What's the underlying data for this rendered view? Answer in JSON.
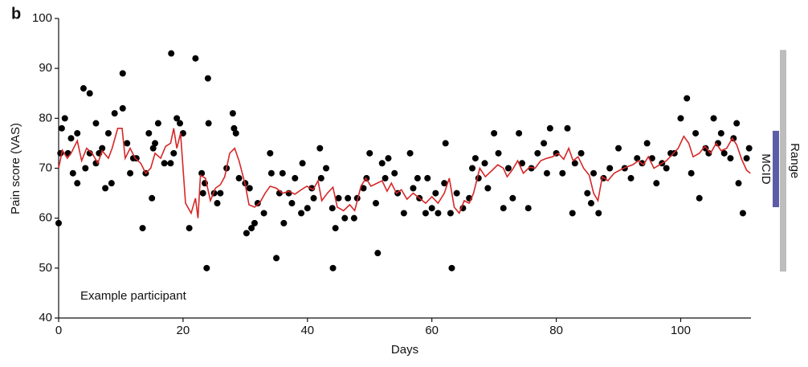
{
  "chart_data": {
    "type": "scatter",
    "panel_label": "b",
    "annotation": "Example participant",
    "x_label": "Days",
    "y_label": "Pain score (VAS)",
    "xlim": [
      0,
      111.3
    ],
    "ylim": [
      40,
      100
    ],
    "xticks": [
      0,
      20,
      40,
      60,
      80,
      100
    ],
    "yticks": [
      40,
      50,
      60,
      70,
      80,
      90,
      100
    ],
    "points": {
      "color": "#000000",
      "x": [
        0,
        0.3,
        0.5,
        1,
        1.5,
        2,
        2.3,
        3,
        3,
        4,
        4.3,
        5,
        5,
        6,
        6,
        6.5,
        7,
        7.5,
        8,
        8.5,
        9,
        10.3,
        10.3,
        11,
        11.5,
        12,
        12.5,
        13.5,
        14,
        14.5,
        15,
        15.2,
        15.5,
        16,
        17,
        18,
        18.1,
        18.5,
        19,
        19.5,
        20,
        21,
        22,
        23,
        23.2,
        23.5,
        23.8,
        24,
        24.1,
        25,
        25.5,
        26,
        27,
        28,
        28.2,
        28.5,
        29,
        30,
        30.2,
        30.7,
        31,
        31.5,
        32,
        33,
        34,
        34.2,
        35,
        35.5,
        36,
        36.2,
        37,
        37.5,
        38,
        39,
        39.2,
        40,
        40.7,
        41,
        42,
        42.2,
        43,
        44,
        44.1,
        44.5,
        45,
        46,
        46.5,
        47.5,
        48,
        49,
        49.5,
        50,
        51,
        51.3,
        52,
        52.5,
        53,
        54,
        54.5,
        55.5,
        56.5,
        57,
        57.7,
        58,
        59,
        59.3,
        60,
        60.6,
        61,
        62,
        62.2,
        63,
        63.2,
        64,
        65,
        66,
        66.5,
        67,
        67.5,
        68.5,
        69,
        70,
        70.7,
        71.5,
        72.3,
        73,
        74,
        74.5,
        75.5,
        76,
        77,
        78,
        78.5,
        79,
        80,
        81,
        81.8,
        82.6,
        83,
        84,
        85,
        85.6,
        86,
        86.8,
        87.6,
        88.6,
        90,
        91,
        92,
        93,
        93.8,
        94.6,
        95.4,
        96.1,
        97,
        97.7,
        98.4,
        99,
        100,
        101,
        101.7,
        102.4,
        103,
        104,
        104.5,
        105.3,
        106,
        106.5,
        107,
        108,
        108.5,
        109,
        109.3,
        110,
        110.6,
        111
      ],
      "y": [
        59,
        73,
        78,
        80,
        73,
        76,
        69,
        67,
        77,
        86,
        70,
        85,
        73,
        79,
        71,
        73,
        74,
        66,
        77,
        67,
        81,
        89,
        82,
        75,
        69,
        72,
        72,
        58,
        69,
        77,
        64,
        74,
        75,
        79,
        71,
        71,
        93,
        73,
        80,
        79,
        77,
        58,
        92,
        69,
        65,
        67,
        50,
        88,
        79,
        65,
        63,
        65,
        70,
        81,
        78,
        77,
        68,
        67,
        57,
        66,
        58,
        59,
        63,
        61,
        73,
        69,
        52,
        65,
        69,
        59,
        65,
        63,
        68,
        61,
        71,
        62,
        66,
        64,
        74,
        68,
        70,
        62,
        50,
        58,
        64,
        60,
        64,
        60,
        64,
        66,
        68,
        73,
        63,
        53,
        71,
        68,
        72,
        69,
        65,
        61,
        73,
        66,
        68,
        64,
        61,
        68,
        62,
        65,
        61,
        67,
        75,
        61,
        50,
        65,
        62,
        64,
        70,
        72,
        68,
        71,
        66,
        77,
        73,
        62,
        70,
        64,
        77,
        71,
        62,
        70,
        73,
        75,
        69,
        78,
        73,
        69,
        78,
        61,
        71,
        73,
        65,
        63,
        69,
        61,
        68,
        70,
        74,
        70,
        68,
        72,
        71,
        75,
        72,
        67,
        71,
        70,
        73,
        73,
        80,
        84,
        69,
        77,
        64,
        74,
        73,
        80,
        75,
        77,
        73,
        72,
        76,
        79,
        67,
        61,
        72,
        74
      ]
    },
    "trend": {
      "color": "#d62728",
      "x": [
        0,
        0.6,
        1.4,
        2,
        3,
        3.7,
        4.5,
        5.4,
        6.3,
        7,
        8,
        8.6,
        9.5,
        10.2,
        10.7,
        11.5,
        12.3,
        13.2,
        14,
        14.8,
        15.5,
        16.4,
        17.2,
        18,
        18.5,
        19,
        19.6,
        20.4,
        21.3,
        22,
        22.4,
        22.8,
        23.6,
        24.4,
        25.2,
        26,
        26.7,
        27.5,
        28.3,
        29,
        30,
        30.6,
        31.5,
        32.3,
        33.2,
        34,
        35,
        36,
        37,
        38,
        39,
        39.9,
        40.9,
        41.7,
        42.3,
        43.2,
        44.1,
        44.8,
        45.8,
        46.8,
        47.6,
        48.6,
        49.4,
        50.2,
        51.2,
        52,
        52.8,
        53.5,
        54.3,
        55.1,
        56,
        57,
        58,
        59,
        60,
        61,
        62,
        62.8,
        63.6,
        64.4,
        65.2,
        66,
        66.7,
        67.7,
        68.6,
        69.7,
        70.6,
        71.5,
        72.1,
        72.9,
        73.8,
        74.7,
        75.7,
        76.6,
        77.5,
        78.5,
        79.4,
        80.3,
        81.2,
        82,
        82.7,
        83.5,
        84.4,
        85.3,
        86,
        86.7,
        87.4,
        88.3,
        89.3,
        90.2,
        91.2,
        92.3,
        93.2,
        94,
        94.8,
        95.7,
        96.6,
        97.7,
        98.7,
        99.6,
        100.5,
        101.3,
        102,
        103,
        103.9,
        104.8,
        105.7,
        106.5,
        107.4,
        108.3,
        109,
        109.8,
        110.6,
        111.2
      ],
      "y": [
        70,
        73.6,
        72,
        73,
        75.5,
        71.5,
        74,
        73,
        71,
        73.5,
        72,
        74,
        78,
        78,
        72,
        74,
        72,
        71,
        69,
        70,
        73,
        72,
        74.4,
        75,
        78,
        74,
        77,
        63,
        61,
        64,
        60,
        68.6,
        68,
        63.5,
        66,
        66.7,
        68.3,
        73,
        74,
        71.5,
        66.7,
        62.7,
        62.2,
        63,
        65,
        66.4,
        66,
        65,
        65.4,
        64.8,
        65.7,
        66.4,
        65.7,
        67.5,
        63.5,
        65,
        66.2,
        62.2,
        61.5,
        62.7,
        61.5,
        66.4,
        68,
        66.4,
        67,
        67.5,
        65.4,
        67,
        65,
        65.7,
        63.8,
        65,
        64,
        63,
        64.3,
        63,
        65,
        68,
        62.2,
        61,
        63.5,
        63,
        65,
        70,
        68.3,
        69.6,
        70.7,
        70,
        68.3,
        69.6,
        71.5,
        69,
        70.2,
        70,
        71.5,
        72,
        72.3,
        73,
        71.8,
        74,
        71.5,
        72.3,
        70,
        68.6,
        65,
        63.5,
        68.3,
        67.5,
        69,
        69.6,
        70.2,
        70.7,
        71.5,
        70.7,
        72.3,
        70,
        70.7,
        71.5,
        72.8,
        74,
        76.4,
        75,
        72.3,
        73,
        74.4,
        73,
        75,
        73.5,
        74,
        76,
        74.7,
        71.8,
        69.6,
        69
      ]
    },
    "mcid_bar": {
      "label": "MCID",
      "values": [
        62.2,
        77.5
      ],
      "color": "#5b5ea6"
    },
    "range_bar": {
      "label": "Range",
      "values": [
        49.3,
        93.7
      ],
      "color": "#bdbdbd"
    }
  }
}
